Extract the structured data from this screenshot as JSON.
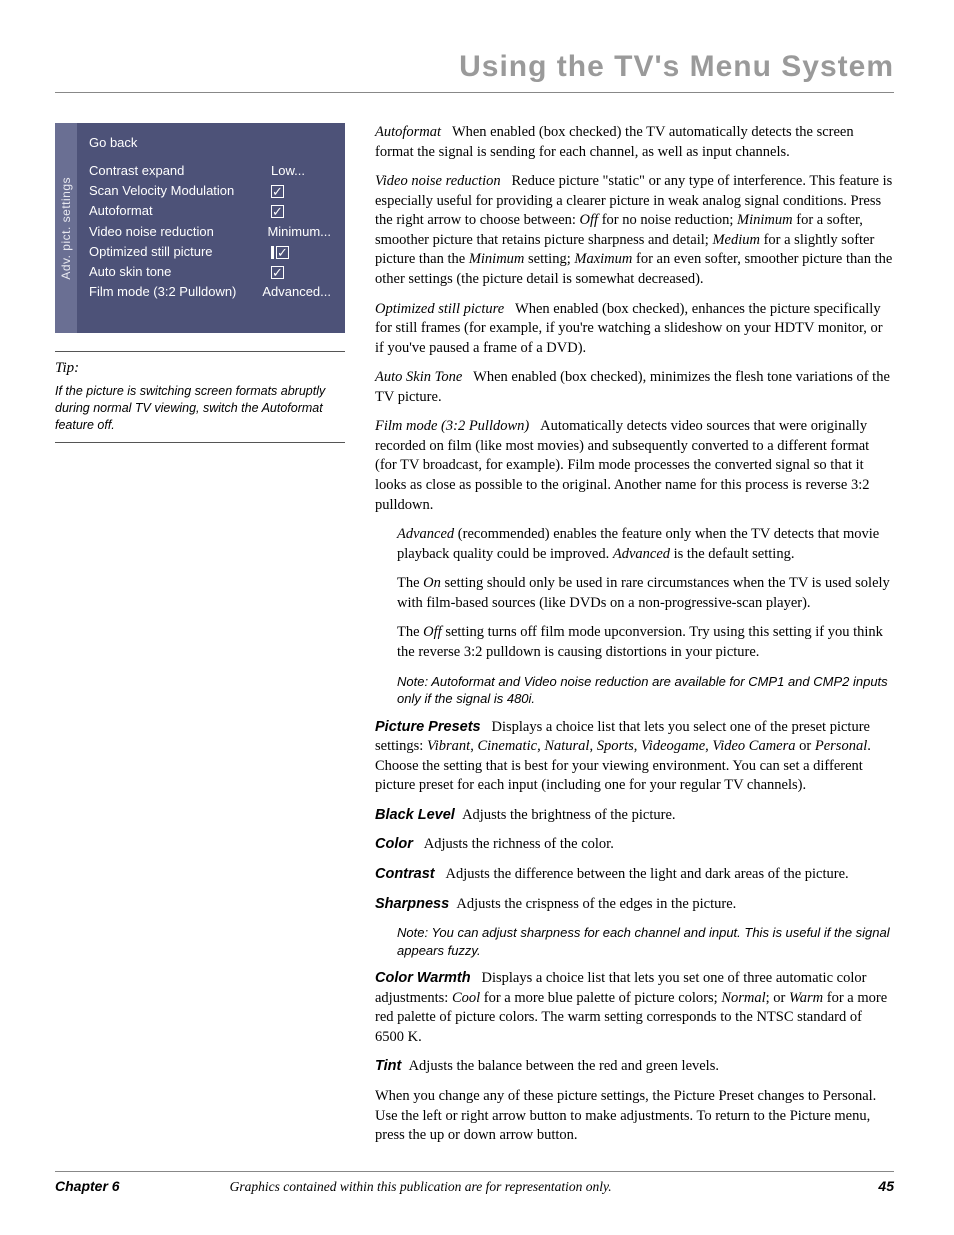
{
  "page_title": "Using the TV's Menu System",
  "menu": {
    "sidebar_label": "Adv. pict. settings",
    "go_back": "Go back",
    "items": [
      {
        "label": "Contrast expand",
        "value": "Low...",
        "type": "text"
      },
      {
        "label": "Scan Velocity Modulation",
        "value": "",
        "type": "check"
      },
      {
        "label": "Autoformat",
        "value": "",
        "type": "check"
      },
      {
        "label": "Video noise reduction",
        "value": "Minimum...",
        "type": "text"
      },
      {
        "label": "Optimized still picture",
        "value": "",
        "type": "check",
        "highlight": true
      },
      {
        "label": "Auto skin tone",
        "value": "",
        "type": "check"
      },
      {
        "label": "Film mode (3:2 Pulldown)",
        "value": "Advanced...",
        "type": "text"
      }
    ]
  },
  "tip": {
    "heading": "Tip:",
    "body": "If the picture is switching screen formats abruptly during normal TV viewing, switch the Autoformat feature off."
  },
  "body": {
    "p1_term": "Autoformat",
    "p1": "When enabled (box checked) the TV automatically detects the screen format the signal is sending for each channel, as well as input channels.",
    "p2_term": "Video noise reduction",
    "p2a": "Reduce picture \"static\" or any type of interference. This feature is especially useful for providing a clearer picture in weak analog signal conditions. Press the right arrow to choose between: ",
    "p2_off": "Off",
    "p2b": " for no noise reduction; ",
    "p2_min": "Minimum",
    "p2c": " for a softer, smoother picture that retains picture sharpness and detail; ",
    "p2_med": "Medium",
    "p2d": " for a slightly softer picture than the ",
    "p2_min2": "Minimum",
    "p2e": " setting; ",
    "p2_max": "Maximum",
    "p2f": " for an even softer, smoother picture than the other settings (the picture detail is somewhat decreased).",
    "p3_term": "Optimized still picture",
    "p3": "When enabled (box checked), enhances the picture specifically for still frames (for example, if you're watching a slideshow on your HDTV monitor, or if you've paused a frame of a DVD).",
    "p4_term": "Auto Skin Tone",
    "p4": "When enabled (box checked), minimizes the flesh tone variations of the TV picture.",
    "p5_term": "Film mode (3:2 Pulldown)",
    "p5": "Automatically detects video sources that were originally recorded on film (like most movies) and subsequently converted to a different format (for TV broadcast, for example). Film mode processes the converted signal so that it looks as close as possible to the original. Another name for this process is reverse 3:2 pulldown.",
    "p5a_adv": "Advanced",
    "p5a": " (recommended) enables the feature only when the TV detects that movie playback quality could be improved. ",
    "p5a_adv2": "Advanced",
    "p5a2": " is the default setting.",
    "p5b_pre": "The ",
    "p5b_on": "On",
    "p5b": " setting should only be used in rare circumstances when the TV is used solely with film-based sources (like DVDs on a non-progressive-scan player).",
    "p5c_pre": "The ",
    "p5c_off": "Off",
    "p5c": " setting turns off film mode upconversion. Try using this setting if you think the reverse 3:2 pulldown is causing distortions in your picture.",
    "note1": "Note: Autoformat and Video noise reduction are available for CMP1 and CMP2 inputs only if the signal is 480i.",
    "pp_term": "Picture Presets",
    "ppa": "Displays a choice list that lets you select one of the preset picture settings: ",
    "pp_v": "Vibrant",
    "pp_c": "Cinematic",
    "pp_n": "Natural",
    "pp_s": "Sports",
    "pp_vg": "Videogame",
    "pp_vc": "Video Camera",
    "pp_p": "Personal",
    "ppb": ". Choose the setting that is best for your viewing environment. You can set a different picture preset for each input (including one for your regular TV channels).",
    "bl_term": "Black Level",
    "bl": "Adjusts the brightness of the picture.",
    "col_term": "Color",
    "col": "Adjusts the richness of the color.",
    "con_term": "Contrast",
    "con": "Adjusts the difference between the light and dark areas of the picture.",
    "sh_term": "Sharpness",
    "sh": "Adjusts the crispness of the edges in the picture.",
    "note2": "Note: You can adjust sharpness for each channel and input. This is useful if the signal appears fuzzy.",
    "cw_term": "Color Warmth",
    "cwa": "Displays a choice list that lets you set one of three automatic color adjustments: ",
    "cw_cool": "Cool",
    "cwb": " for a more blue palette of picture colors; ",
    "cw_norm": "Normal",
    "cwc": "; or ",
    "cw_warm": "Warm",
    "cwd": " for a more red palette of picture colors. The warm setting corresponds to the NTSC standard of 6500 K.",
    "tint_term": "Tint",
    "tint": "Adjusts the balance between the red and green levels.",
    "last": "When you change any of these picture settings, the Picture Preset changes to Personal. Use the left or right arrow button to make adjustments. To return to the Picture menu, press the up or down arrow button."
  },
  "footer": {
    "chapter": "Chapter 6",
    "caption": "Graphics contained within this publication are for representation only.",
    "page": "45"
  }
}
